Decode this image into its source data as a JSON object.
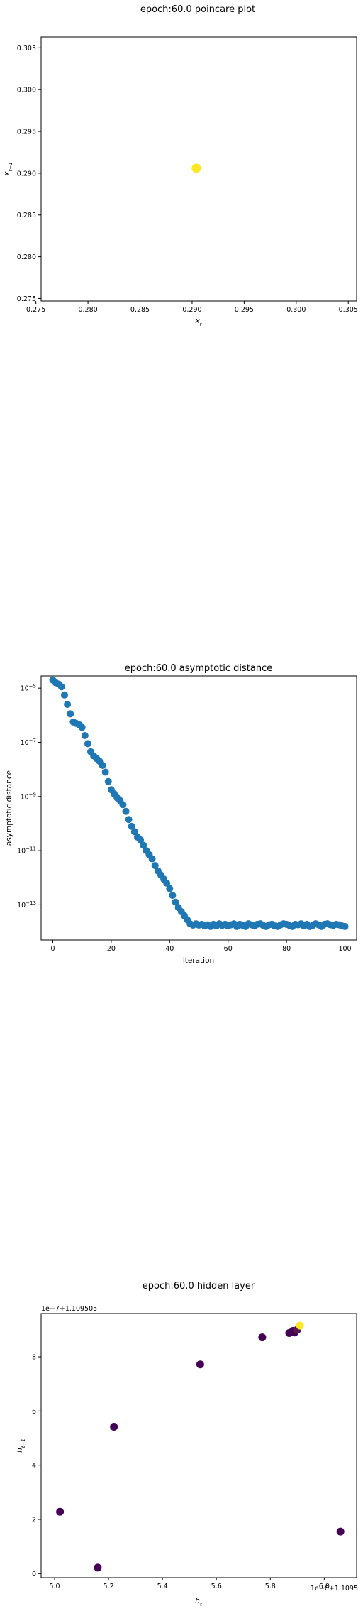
{
  "colors": {
    "viridis_low": "#440154",
    "viridis_high": "#fde725",
    "series": "#1f77b4",
    "frame": "#000000"
  },
  "chart_data": [
    {
      "type": "scatter",
      "title": "epoch:60.0 poincare plot",
      "xlabel": "x_t",
      "ylabel": "x_{t-1}",
      "xlim": [
        0.2755,
        0.3058
      ],
      "ylim": [
        0.2747,
        0.3063
      ],
      "xticks": [
        0.275,
        0.28,
        0.285,
        0.29,
        0.295,
        0.3,
        0.305
      ],
      "xtick_labels": [
        "0.275",
        "0.280",
        "0.285",
        "0.290",
        "0.295",
        "0.300",
        "0.305"
      ],
      "yticks": [
        0.275,
        0.28,
        0.285,
        0.29,
        0.295,
        0.3,
        0.305
      ],
      "ytick_labels": [
        "0.275",
        "0.280",
        "0.285",
        "0.290",
        "0.295",
        "0.300",
        "0.305"
      ],
      "colormap": "viridis",
      "points": [
        {
          "x": 0.2904,
          "y": 0.2906,
          "c": 1
        }
      ]
    },
    {
      "type": "scatter",
      "title": "epoch:60.0 asymptotic distance",
      "xlabel": "iteration",
      "ylabel": "asymptotic distance",
      "xlim": [
        -4,
        104
      ],
      "yscale": "log",
      "ylim_log10": [
        -14.3,
        -4.55
      ],
      "xticks": [
        0,
        20,
        40,
        60,
        80,
        100
      ],
      "xtick_labels": [
        "0",
        "20",
        "40",
        "60",
        "80",
        "100"
      ],
      "yticks_log10": [
        -5,
        -7,
        -9,
        -11,
        -13
      ],
      "ytick_bases": [
        "10",
        "10",
        "10",
        "10",
        "10"
      ],
      "ytick_exps": [
        "−5",
        "−7",
        "−9",
        "−11",
        "−13"
      ],
      "x": [
        0,
        1,
        2,
        3,
        4,
        5,
        6,
        7,
        8,
        9,
        10,
        11,
        12,
        13,
        14,
        15,
        16,
        17,
        18,
        19,
        20,
        21,
        22,
        23,
        24,
        25,
        26,
        27,
        28,
        29,
        30,
        31,
        32,
        33,
        34,
        35,
        36,
        37,
        38,
        39,
        40,
        41,
        42,
        43,
        44,
        45,
        46,
        47,
        48,
        49,
        50,
        51,
        52,
        53,
        54,
        55,
        56,
        57,
        58,
        59,
        60,
        61,
        62,
        63,
        64,
        65,
        66,
        67,
        68,
        69,
        70,
        71,
        72,
        73,
        74,
        75,
        76,
        77,
        78,
        79,
        80,
        81,
        82,
        83,
        84,
        85,
        86,
        87,
        88,
        89,
        90,
        91,
        92,
        93,
        94,
        95,
        96,
        97,
        98,
        99,
        100
      ],
      "log10_y": [
        -4.7,
        -4.8,
        -4.85,
        -4.95,
        -5.25,
        -5.6,
        -5.95,
        -6.25,
        -6.3,
        -6.35,
        -6.45,
        -6.75,
        -7.05,
        -7.35,
        -7.5,
        -7.6,
        -7.7,
        -7.85,
        -8.1,
        -8.45,
        -8.75,
        -8.9,
        -9.05,
        -9.15,
        -9.3,
        -9.55,
        -9.85,
        -10.1,
        -10.3,
        -10.5,
        -10.6,
        -10.8,
        -11.0,
        -11.15,
        -11.3,
        -11.55,
        -11.75,
        -11.9,
        -12.05,
        -12.2,
        -12.4,
        -12.65,
        -12.9,
        -13.1,
        -13.25,
        -13.4,
        -13.55,
        -13.7,
        -13.75,
        -13.7,
        -13.75,
        -13.72,
        -13.78,
        -13.74,
        -13.8,
        -13.72,
        -13.78,
        -13.7,
        -13.76,
        -13.72,
        -13.78,
        -13.74,
        -13.7,
        -13.8,
        -13.72,
        -13.76,
        -13.8,
        -13.7,
        -13.74,
        -13.78,
        -13.72,
        -13.7,
        -13.76,
        -13.8,
        -13.74,
        -13.72,
        -13.78,
        -13.8,
        -13.74,
        -13.7,
        -13.72,
        -13.76,
        -13.8,
        -13.72,
        -13.74,
        -13.7,
        -13.78,
        -13.72,
        -13.8,
        -13.76,
        -13.7,
        -13.74,
        -13.8,
        -13.72,
        -13.7,
        -13.74,
        -13.76,
        -13.72,
        -13.74,
        -13.78,
        -13.8
      ]
    },
    {
      "type": "scatter",
      "title": "epoch:60.0 hidden layer",
      "xlabel": "h_t",
      "ylabel": "h_{t-1}",
      "xlim": [
        4.95,
        6.12
      ],
      "ylim": [
        -0.15,
        9.6
      ],
      "xticks": [
        5.0,
        5.2,
        5.4,
        5.6,
        5.8,
        6.0
      ],
      "xtick_labels": [
        "5.0",
        "5.2",
        "5.4",
        "5.6",
        "5.8",
        "6.0"
      ],
      "yticks": [
        0,
        2,
        4,
        6,
        8
      ],
      "ytick_labels": [
        "0",
        "2",
        "4",
        "6",
        "8"
      ],
      "x_offset_label": "1e−6+1.1095",
      "y_offset_label": "1e−7+1.109505",
      "colormap": "viridis",
      "points": [
        {
          "x": 5.02,
          "y": 2.28,
          "c": 0
        },
        {
          "x": 5.16,
          "y": 0.22,
          "c": 0
        },
        {
          "x": 5.22,
          "y": 5.42,
          "c": 0
        },
        {
          "x": 5.54,
          "y": 7.72,
          "c": 0
        },
        {
          "x": 5.77,
          "y": 8.72,
          "c": 0
        },
        {
          "x": 6.06,
          "y": 1.55,
          "c": 0
        },
        {
          "x": 5.87,
          "y": 8.88,
          "c": 0
        },
        {
          "x": 5.88,
          "y": 8.92,
          "c": 0
        },
        {
          "x": 5.885,
          "y": 8.96,
          "c": 0
        },
        {
          "x": 5.89,
          "y": 8.9,
          "c": 0
        },
        {
          "x": 5.9,
          "y": 9.0,
          "c": 0.1
        },
        {
          "x": 5.91,
          "y": 9.15,
          "c": 1
        }
      ]
    }
  ]
}
